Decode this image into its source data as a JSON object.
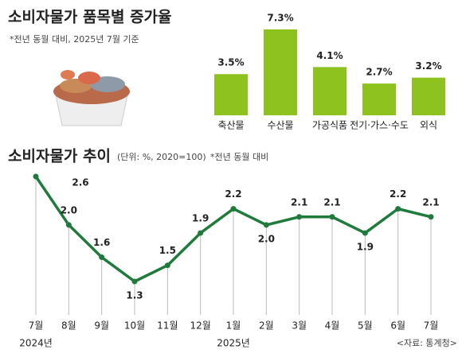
{
  "chart_data": [
    {
      "type": "bar",
      "title": "소비자물가 품목별 증가율",
      "subtitle": "*전년 동월 대비, 2025년 7월 기준",
      "categories": [
        "축산물",
        "수산물",
        "가공식품",
        "전기·가스·수도",
        "외식"
      ],
      "values": [
        3.5,
        7.3,
        4.1,
        2.7,
        3.2
      ],
      "value_labels": [
        "3.5%",
        "7.3%",
        "4.1%",
        "2.7%",
        "3.2%"
      ],
      "color": "#8dc21f"
    },
    {
      "type": "line",
      "title": "소비자물가 추이",
      "unit": "(단위: %, 2020=100)",
      "note": "*전년 동월 대비",
      "categories": [
        "7월",
        "8월",
        "9월",
        "10월",
        "11월",
        "12월",
        "1월",
        "2월",
        "3월",
        "4월",
        "5월",
        "6월",
        "7월"
      ],
      "values": [
        2.6,
        2.0,
        1.6,
        1.3,
        1.5,
        1.9,
        2.2,
        2.0,
        2.1,
        2.1,
        1.9,
        2.2,
        2.1
      ],
      "value_labels": [
        "2.6",
        "2.0",
        "1.6",
        "1.3",
        "1.5",
        "1.9",
        "2.2",
        "2.0",
        "2.1",
        "2.1",
        "1.9",
        "2.2",
        "2.1"
      ],
      "x_groups": [
        {
          "label": "2024년",
          "start": 0
        },
        {
          "label": "2025년",
          "start": 6
        }
      ],
      "color": "#1e7b3c",
      "source": "<자료: 통계청>"
    }
  ]
}
